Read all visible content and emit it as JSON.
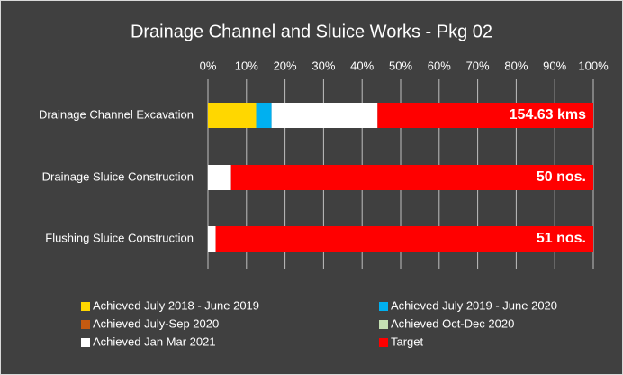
{
  "chart_data": {
    "type": "stacked-bar-horizontal",
    "title": "Drainage Channel and Sluice Works - Pkg 02",
    "categories": [
      "Drainage Channel Excavation",
      "Drainage Sluice Construction",
      "Flushing Sluice Construction"
    ],
    "series": [
      {
        "name": "Achieved  July 2018 - June 2019",
        "color": "#ffd700",
        "values": [
          12.5,
          0,
          0
        ]
      },
      {
        "name": "Achieved  July 2019 - June 2020",
        "color": "#00b0f0",
        "values": [
          4,
          0,
          0
        ]
      },
      {
        "name": "Achieved  July-Sep 2020",
        "color": "#c55a11",
        "values": [
          0,
          0,
          0
        ]
      },
      {
        "name": "Achieved  Oct-Dec 2020",
        "color": "#c5e0b4",
        "values": [
          0,
          0,
          0
        ]
      },
      {
        "name": "Achieved  Jan Mar 2021",
        "color": "#ffffff",
        "values": [
          27.5,
          6,
          2
        ]
      },
      {
        "name": "Target",
        "color": "#ff0000",
        "values": [
          56,
          94,
          98
        ]
      }
    ],
    "bar_labels": [
      "154.63 kms",
      "50 nos.",
      "51 nos."
    ],
    "xlim": [
      0,
      100
    ],
    "xticks": [
      {
        "value": 0,
        "label": "0%"
      },
      {
        "value": 10,
        "label": "10%"
      },
      {
        "value": 20,
        "label": "20%"
      },
      {
        "value": 30,
        "label": "30%"
      },
      {
        "value": 40,
        "label": "40%"
      },
      {
        "value": 50,
        "label": "50%"
      },
      {
        "value": 60,
        "label": "60%"
      },
      {
        "value": 70,
        "label": "70%"
      },
      {
        "value": 80,
        "label": "80%"
      },
      {
        "value": 90,
        "label": "90%"
      },
      {
        "value": 100,
        "label": "100%"
      }
    ],
    "grid": true
  }
}
